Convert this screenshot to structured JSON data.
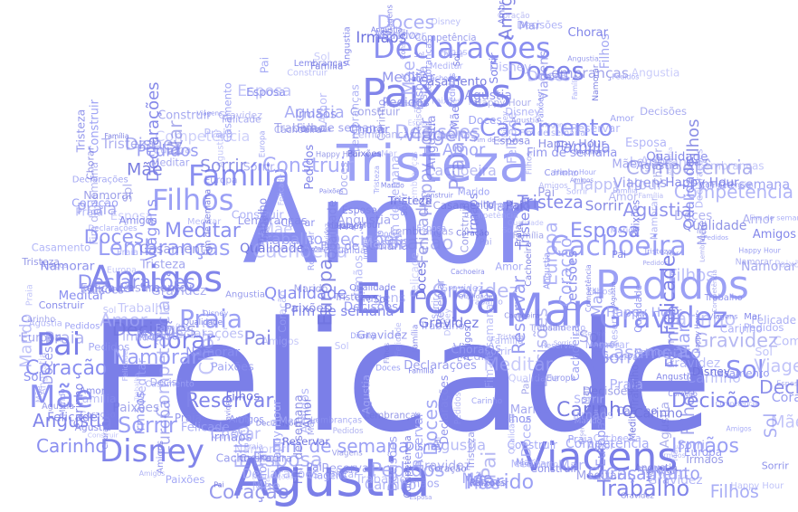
{
  "cloud": {
    "palette": [
      "#7b7fe8",
      "#8a8ff0",
      "#9ba0f5",
      "#6f73df",
      "#a7abf7",
      "#8185ea"
    ],
    "words": [
      {
        "text": "Felicade"
      },
      {
        "text": "Amor"
      },
      {
        "text": "Agustia"
      },
      {
        "text": "Tristeza"
      },
      {
        "text": "Paixões"
      },
      {
        "text": "Declarações"
      },
      {
        "text": "Europa"
      },
      {
        "text": "Mar"
      },
      {
        "text": "Pedidos"
      },
      {
        "text": "Gravidez"
      },
      {
        "text": "Amigos"
      },
      {
        "text": "Família"
      },
      {
        "text": "Filhos"
      },
      {
        "text": "Pai"
      },
      {
        "text": "Mãe"
      },
      {
        "text": "Disney"
      },
      {
        "text": "Viagens"
      },
      {
        "text": "Sol"
      },
      {
        "text": "Praia"
      },
      {
        "text": "Casamento"
      },
      {
        "text": "Cachoeira"
      },
      {
        "text": "Doces"
      },
      {
        "text": "Construir"
      },
      {
        "text": "Lembranças"
      },
      {
        "text": "Meditar"
      },
      {
        "text": "Chorar"
      },
      {
        "text": "Namorar"
      },
      {
        "text": "Coração"
      },
      {
        "text": "Angustia"
      },
      {
        "text": "Sorrir"
      },
      {
        "text": "Carinho"
      },
      {
        "text": "Reservar"
      },
      {
        "text": "Marido"
      },
      {
        "text": "Esposa"
      },
      {
        "text": "Decisões"
      },
      {
        "text": "Irmãos"
      },
      {
        "text": "Qualidade"
      },
      {
        "text": "Trabalho"
      },
      {
        "text": "Fim de semana"
      },
      {
        "text": "Happy Hour"
      },
      {
        "text": "Competência"
      }
    ]
  }
}
